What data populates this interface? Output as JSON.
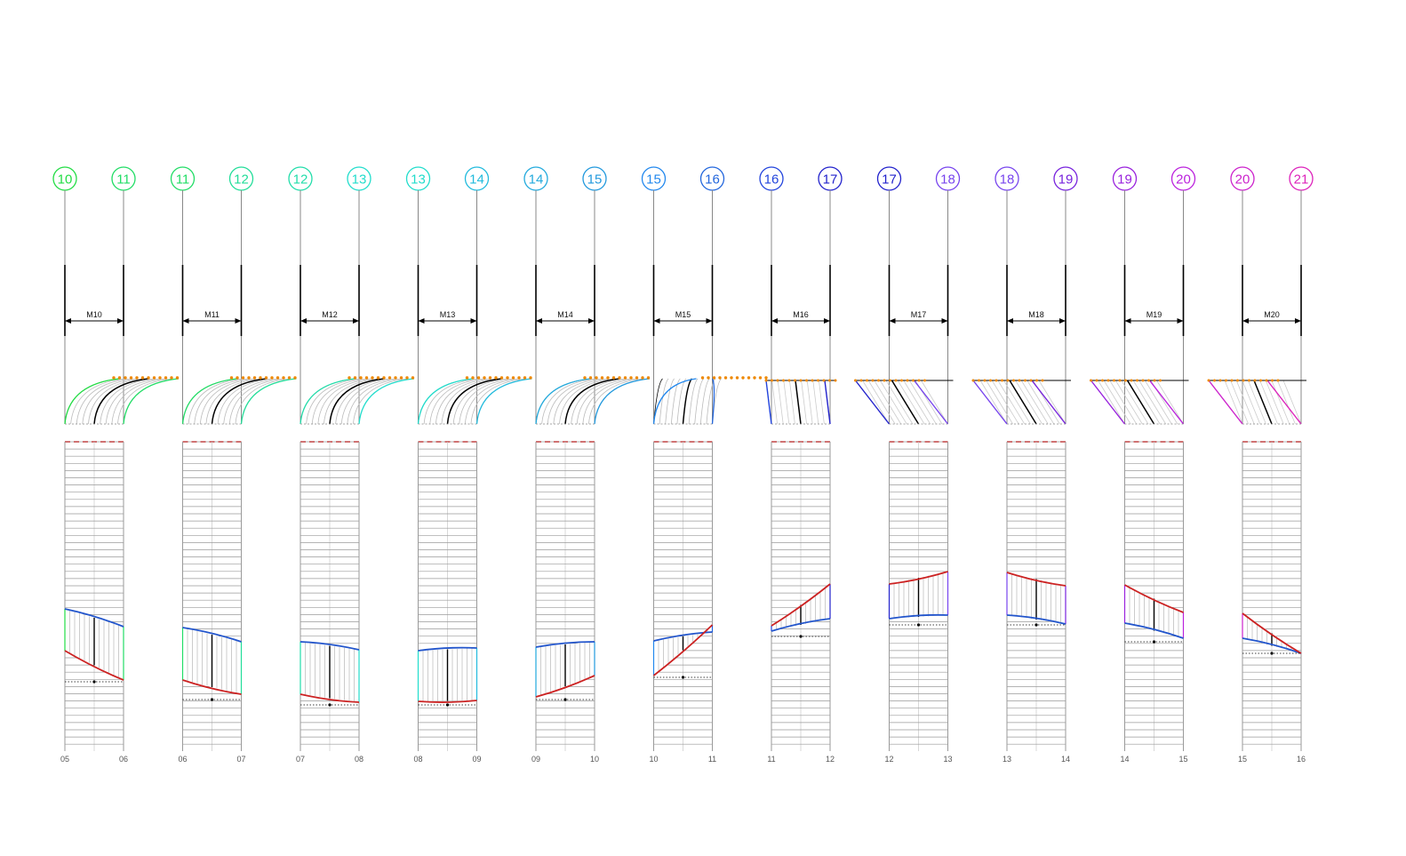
{
  "panels": [
    {
      "module": "M10",
      "axis_left": "10",
      "axis_right": "11",
      "floor_left": "05",
      "floor_right": "06",
      "color_left": "#22dd44",
      "color_right": "#22dd66",
      "roof_type": "curve-up",
      "band": [
        685,
        705,
        732,
        765
      ],
      "dotted": 767
    },
    {
      "module": "M11",
      "axis_left": "11",
      "axis_right": "12",
      "floor_left": "06",
      "floor_right": "07",
      "color_left": "#22dd66",
      "color_right": "#22dd99",
      "roof_type": "curve-up",
      "band": [
        706,
        722,
        765,
        781
      ],
      "dotted": 787
    },
    {
      "module": "M12",
      "axis_left": "12",
      "axis_right": "13",
      "floor_left": "07",
      "floor_right": "08",
      "color_left": "#22ddaa",
      "color_right": "#22ddcc",
      "roof_type": "curve-up",
      "band": [
        722,
        731,
        781,
        790
      ],
      "dotted": 793
    },
    {
      "module": "M13",
      "axis_left": "13",
      "axis_right": "14",
      "floor_left": "08",
      "floor_right": "09",
      "color_left": "#22ddcc",
      "color_right": "#22bbdd",
      "roof_type": "curve-up",
      "band": [
        732,
        729,
        789,
        788
      ],
      "dotted": 793
    },
    {
      "module": "M14",
      "axis_left": "14",
      "axis_right": "15",
      "floor_left": "09",
      "floor_right": "10",
      "color_left": "#22aadd",
      "color_right": "#2299dd",
      "roof_type": "curve-up",
      "band": [
        728,
        722,
        784,
        760
      ],
      "dotted": 787
    },
    {
      "module": "M15",
      "axis_left": "15",
      "axis_right": "16",
      "floor_left": "10",
      "floor_right": "11",
      "color_left": "#2288ee",
      "color_right": "#2266dd",
      "roof_type": "curve-steep",
      "band": [
        721,
        711,
        760,
        703
      ],
      "dotted": 762
    },
    {
      "module": "M16",
      "axis_left": "16",
      "axis_right": "17",
      "floor_left": "11",
      "floor_right": "12",
      "color_left": "#2244dd",
      "color_right": "#2222cc",
      "roof_type": "lean-right",
      "band": [
        710,
        696,
        704,
        657
      ],
      "dotted": 716
    },
    {
      "module": "M17",
      "axis_left": "17",
      "axis_right": "18",
      "floor_left": "12",
      "floor_right": "13",
      "color_left": "#2222cc",
      "color_right": "#7744ee",
      "roof_type": "lean-right",
      "band": [
        696,
        692,
        657,
        643
      ],
      "dotted": 703
    },
    {
      "module": "M18",
      "axis_left": "18",
      "axis_right": "19",
      "floor_left": "13",
      "floor_right": "14",
      "color_left": "#7744ee",
      "color_right": "#7722dd",
      "roof_type": "lean-right",
      "band": [
        692,
        702,
        644,
        659
      ],
      "dotted": 703
    },
    {
      "module": "M19",
      "axis_left": "19",
      "axis_right": "20",
      "floor_left": "14",
      "floor_right": "15",
      "color_left": "#9922dd",
      "color_right": "#bb22dd",
      "roof_type": "lean-right",
      "band": [
        701,
        718,
        658,
        689
      ],
      "dotted": 722
    },
    {
      "module": "M20",
      "axis_left": "20",
      "axis_right": "21",
      "floor_left": "15",
      "floor_right": "16",
      "color_left": "#cc22cc",
      "color_right": "#dd22bb",
      "roof_type": "lean-mixed",
      "band": [
        718,
        735,
        690,
        735
      ],
      "dotted": 735
    }
  ],
  "colors": {
    "grid": "#9a9a9a",
    "hatch": "#555555",
    "red_line": "#cc2222",
    "blue_line": "#2255cc",
    "dash_red": "#ee3333",
    "orange_dots": "#ee8800"
  }
}
